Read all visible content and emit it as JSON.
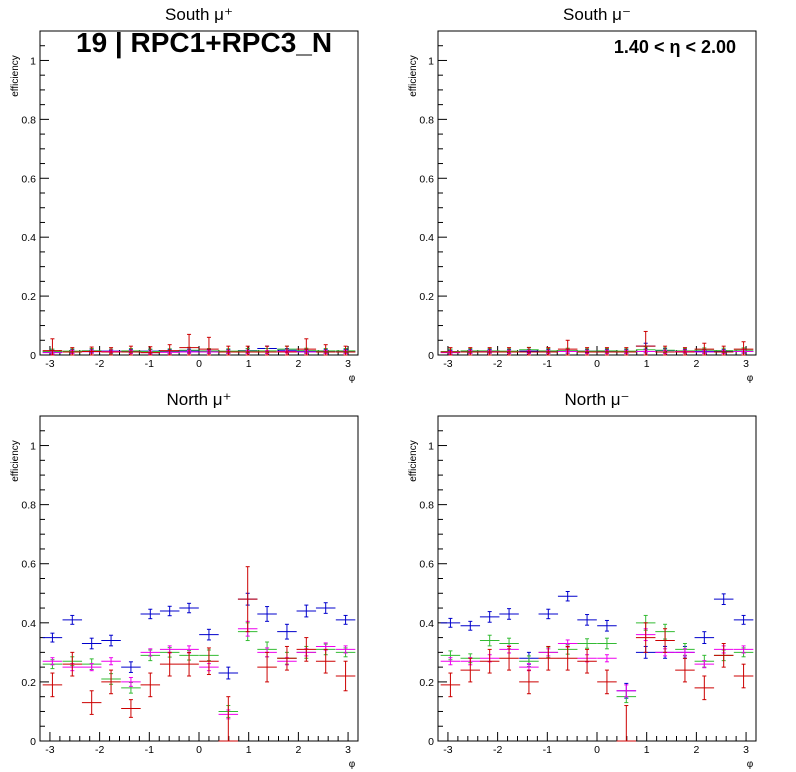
{
  "banner": "19 | RPC1+RPC3_N",
  "eta_label": "1.40 < η < 2.00",
  "chart_data": [
    {
      "type": "scatter",
      "title": "South μ⁺",
      "xlabel": "φ",
      "ylabel": "efficiency",
      "xlim": [
        -3.2,
        3.2
      ],
      "ylim": [
        0,
        1.1
      ],
      "xticks": [
        -3,
        -2,
        -1,
        0,
        1,
        2,
        3
      ],
      "yticks": [
        0,
        0.2,
        0.4,
        0.6,
        0.8,
        1
      ],
      "bin_half_width": 0.1963,
      "x": [
        -2.95,
        -2.55,
        -2.16,
        -1.77,
        -1.37,
        -0.98,
        -0.59,
        -0.2,
        0.2,
        0.59,
        0.98,
        1.37,
        1.77,
        2.16,
        2.55,
        2.95
      ],
      "series": [
        {
          "color": "#0000cc",
          "values": [
            0.01,
            0.012,
            0.014,
            0.013,
            0.012,
            0.013,
            0.012,
            0.014,
            0.012,
            0.012,
            0.015,
            0.022,
            0.016,
            0.013,
            0.012,
            0.012
          ],
          "errors": [
            0.006,
            0.006,
            0.006,
            0.006,
            0.006,
            0.006,
            0.006,
            0.006,
            0.006,
            0.006,
            0.006,
            0.008,
            0.006,
            0.006,
            0.006,
            0.006
          ]
        },
        {
          "color": "#33bb33",
          "values": [
            0.012,
            0.013,
            0.014,
            0.012,
            0.014,
            0.012,
            0.013,
            0.016,
            0.014,
            0.013,
            0.014,
            0.014,
            0.02,
            0.015,
            0.014,
            0.014
          ],
          "errors": [
            0.008,
            0.008,
            0.008,
            0.008,
            0.008,
            0.008,
            0.008,
            0.01,
            0.008,
            0.008,
            0.008,
            0.008,
            0.01,
            0.008,
            0.008,
            0.008
          ]
        },
        {
          "color": "#ee00ee",
          "values": [
            0.008,
            0.01,
            0.011,
            0.012,
            0.01,
            0.008,
            0.009,
            0.01,
            0.01,
            0.01,
            0.01,
            0.01,
            0.012,
            0.01,
            0.01,
            0.01
          ],
          "errors": [
            0.005,
            0.005,
            0.005,
            0.005,
            0.005,
            0.005,
            0.005,
            0.005,
            0.005,
            0.005,
            0.005,
            0.005,
            0.005,
            0.005,
            0.005,
            0.005
          ]
        },
        {
          "color": "#cc0000",
          "values": [
            0.015,
            0.01,
            0.012,
            0.01,
            0.01,
            0.008,
            0.015,
            0.025,
            0.02,
            0.01,
            0.01,
            0.01,
            0.01,
            0.02,
            0.01,
            0.01
          ],
          "errors": [
            0.04,
            0.015,
            0.015,
            0.015,
            0.02,
            0.02,
            0.02,
            0.045,
            0.04,
            0.02,
            0.02,
            0.02,
            0.02,
            0.035,
            0.025,
            0.02
          ]
        }
      ]
    },
    {
      "type": "scatter",
      "title": "South μ⁻",
      "xlabel": "φ",
      "ylabel": "efficiency",
      "xlim": [
        -3.2,
        3.2
      ],
      "ylim": [
        0,
        1.1
      ],
      "xticks": [
        -3,
        -2,
        -1,
        0,
        1,
        2,
        3
      ],
      "yticks": [
        0,
        0.2,
        0.4,
        0.6,
        0.8,
        1
      ],
      "bin_half_width": 0.1963,
      "x": [
        -2.95,
        -2.55,
        -2.16,
        -1.77,
        -1.37,
        -0.98,
        -0.59,
        -0.2,
        0.2,
        0.59,
        0.98,
        1.37,
        1.77,
        2.16,
        2.55,
        2.95
      ],
      "series": [
        {
          "color": "#0000cc",
          "values": [
            0.01,
            0.012,
            0.013,
            0.012,
            0.013,
            0.012,
            0.012,
            0.013,
            0.012,
            0.012,
            0.03,
            0.015,
            0.013,
            0.012,
            0.012,
            0.012
          ],
          "errors": [
            0.006,
            0.006,
            0.006,
            0.006,
            0.006,
            0.006,
            0.006,
            0.006,
            0.006,
            0.006,
            0.01,
            0.006,
            0.006,
            0.006,
            0.006,
            0.006
          ]
        },
        {
          "color": "#33bb33",
          "values": [
            0.012,
            0.014,
            0.014,
            0.013,
            0.018,
            0.014,
            0.015,
            0.013,
            0.014,
            0.013,
            0.018,
            0.016,
            0.014,
            0.016,
            0.015,
            0.016
          ],
          "errors": [
            0.008,
            0.008,
            0.008,
            0.008,
            0.008,
            0.008,
            0.008,
            0.008,
            0.008,
            0.008,
            0.01,
            0.008,
            0.008,
            0.008,
            0.008,
            0.008
          ]
        },
        {
          "color": "#ee00ee",
          "values": [
            0.008,
            0.01,
            0.011,
            0.01,
            0.01,
            0.01,
            0.012,
            0.01,
            0.01,
            0.01,
            0.012,
            0.01,
            0.012,
            0.01,
            0.01,
            0.012
          ],
          "errors": [
            0.005,
            0.005,
            0.005,
            0.005,
            0.005,
            0.005,
            0.005,
            0.005,
            0.005,
            0.005,
            0.005,
            0.005,
            0.005,
            0.005,
            0.005,
            0.005
          ]
        },
        {
          "color": "#cc0000",
          "values": [
            0.01,
            0.01,
            0.01,
            0.01,
            0.01,
            0.01,
            0.02,
            0.01,
            0.01,
            0.01,
            0.03,
            0.01,
            0.01,
            0.02,
            0.01,
            0.02
          ],
          "errors": [
            0.015,
            0.015,
            0.015,
            0.015,
            0.015,
            0.015,
            0.03,
            0.015,
            0.015,
            0.015,
            0.05,
            0.02,
            0.015,
            0.02,
            0.02,
            0.025
          ]
        }
      ]
    },
    {
      "type": "scatter",
      "title": "North μ⁺",
      "xlabel": "φ",
      "ylabel": "efficiency",
      "xlim": [
        -3.2,
        3.2
      ],
      "ylim": [
        0,
        1.1
      ],
      "xticks": [
        -3,
        -2,
        -1,
        0,
        1,
        2,
        3
      ],
      "yticks": [
        0,
        0.2,
        0.4,
        0.6,
        0.8,
        1
      ],
      "bin_half_width": 0.1963,
      "x": [
        -2.95,
        -2.55,
        -2.16,
        -1.77,
        -1.37,
        -0.98,
        -0.59,
        -0.2,
        0.2,
        0.59,
        0.98,
        1.37,
        1.77,
        2.16,
        2.55,
        2.95
      ],
      "series": [
        {
          "color": "#0000cc",
          "values": [
            0.35,
            0.41,
            0.33,
            0.34,
            0.25,
            0.43,
            0.44,
            0.45,
            0.36,
            0.23,
            0.48,
            0.43,
            0.37,
            0.44,
            0.45,
            0.41
          ],
          "errors": [
            0.015,
            0.015,
            0.018,
            0.018,
            0.018,
            0.016,
            0.016,
            0.016,
            0.018,
            0.02,
            0.02,
            0.025,
            0.025,
            0.02,
            0.018,
            0.015
          ]
        },
        {
          "color": "#33bb33",
          "values": [
            0.26,
            0.27,
            0.26,
            0.21,
            0.18,
            0.29,
            0.3,
            0.29,
            0.29,
            0.1,
            0.37,
            0.31,
            0.28,
            0.3,
            0.31,
            0.3
          ],
          "errors": [
            0.015,
            0.015,
            0.018,
            0.018,
            0.018,
            0.018,
            0.016,
            0.016,
            0.018,
            0.02,
            0.03,
            0.025,
            0.02,
            0.02,
            0.018,
            0.015
          ]
        },
        {
          "color": "#ee00ee",
          "values": [
            0.27,
            0.25,
            0.25,
            0.27,
            0.2,
            0.3,
            0.31,
            0.31,
            0.25,
            0.09,
            0.38,
            0.3,
            0.27,
            0.3,
            0.32,
            0.31
          ],
          "errors": [
            0.012,
            0.012,
            0.012,
            0.012,
            0.015,
            0.012,
            0.012,
            0.012,
            0.012,
            0.015,
            0.025,
            0.015,
            0.012,
            0.012,
            0.012,
            0.012
          ]
        },
        {
          "color": "#cc0000",
          "values": [
            0.19,
            0.26,
            0.13,
            0.2,
            0.11,
            0.19,
            0.26,
            0.26,
            0.27,
            0.0,
            0.48,
            0.25,
            0.28,
            0.31,
            0.27,
            0.22
          ],
          "errors": [
            0.04,
            0.04,
            0.04,
            0.04,
            0.03,
            0.04,
            0.04,
            0.04,
            0.045,
            0.15,
            0.11,
            0.05,
            0.04,
            0.04,
            0.04,
            0.05
          ]
        }
      ]
    },
    {
      "type": "scatter",
      "title": "North μ⁻",
      "xlabel": "φ",
      "ylabel": "efficiency",
      "xlim": [
        -3.2,
        3.2
      ],
      "ylim": [
        0,
        1.1
      ],
      "xticks": [
        -3,
        -2,
        -1,
        0,
        1,
        2,
        3
      ],
      "yticks": [
        0,
        0.2,
        0.4,
        0.6,
        0.8,
        1
      ],
      "bin_half_width": 0.1963,
      "x": [
        -2.95,
        -2.55,
        -2.16,
        -1.77,
        -1.37,
        -0.98,
        -0.59,
        -0.2,
        0.2,
        0.59,
        0.98,
        1.37,
        1.77,
        2.16,
        2.55,
        2.95
      ],
      "series": [
        {
          "color": "#0000cc",
          "values": [
            0.4,
            0.39,
            0.42,
            0.43,
            0.28,
            0.43,
            0.49,
            0.41,
            0.39,
            0.17,
            0.3,
            0.3,
            0.3,
            0.35,
            0.48,
            0.41
          ],
          "errors": [
            0.015,
            0.015,
            0.018,
            0.018,
            0.02,
            0.016,
            0.016,
            0.018,
            0.018,
            0.025,
            0.02,
            0.02,
            0.02,
            0.02,
            0.018,
            0.015
          ]
        },
        {
          "color": "#33bb33",
          "values": [
            0.29,
            0.28,
            0.34,
            0.33,
            0.27,
            0.3,
            0.31,
            0.33,
            0.33,
            0.15,
            0.4,
            0.37,
            0.31,
            0.27,
            0.29,
            0.3
          ],
          "errors": [
            0.015,
            0.015,
            0.018,
            0.018,
            0.018,
            0.018,
            0.016,
            0.016,
            0.018,
            0.02,
            0.025,
            0.025,
            0.02,
            0.02,
            0.018,
            0.015
          ]
        },
        {
          "color": "#ee00ee",
          "values": [
            0.27,
            0.27,
            0.28,
            0.31,
            0.25,
            0.3,
            0.33,
            0.28,
            0.28,
            0.17,
            0.36,
            0.3,
            0.3,
            0.26,
            0.31,
            0.31
          ],
          "errors": [
            0.012,
            0.012,
            0.012,
            0.012,
            0.012,
            0.012,
            0.012,
            0.012,
            0.012,
            0.02,
            0.02,
            0.012,
            0.012,
            0.012,
            0.012,
            0.012
          ]
        },
        {
          "color": "#cc0000",
          "values": [
            0.19,
            0.24,
            0.27,
            0.28,
            0.2,
            0.28,
            0.28,
            0.27,
            0.2,
            0.0,
            0.35,
            0.34,
            0.24,
            0.18,
            0.29,
            0.22
          ],
          "errors": [
            0.04,
            0.04,
            0.04,
            0.04,
            0.04,
            0.04,
            0.04,
            0.04,
            0.04,
            0.12,
            0.05,
            0.04,
            0.04,
            0.04,
            0.04,
            0.04
          ]
        }
      ]
    }
  ]
}
